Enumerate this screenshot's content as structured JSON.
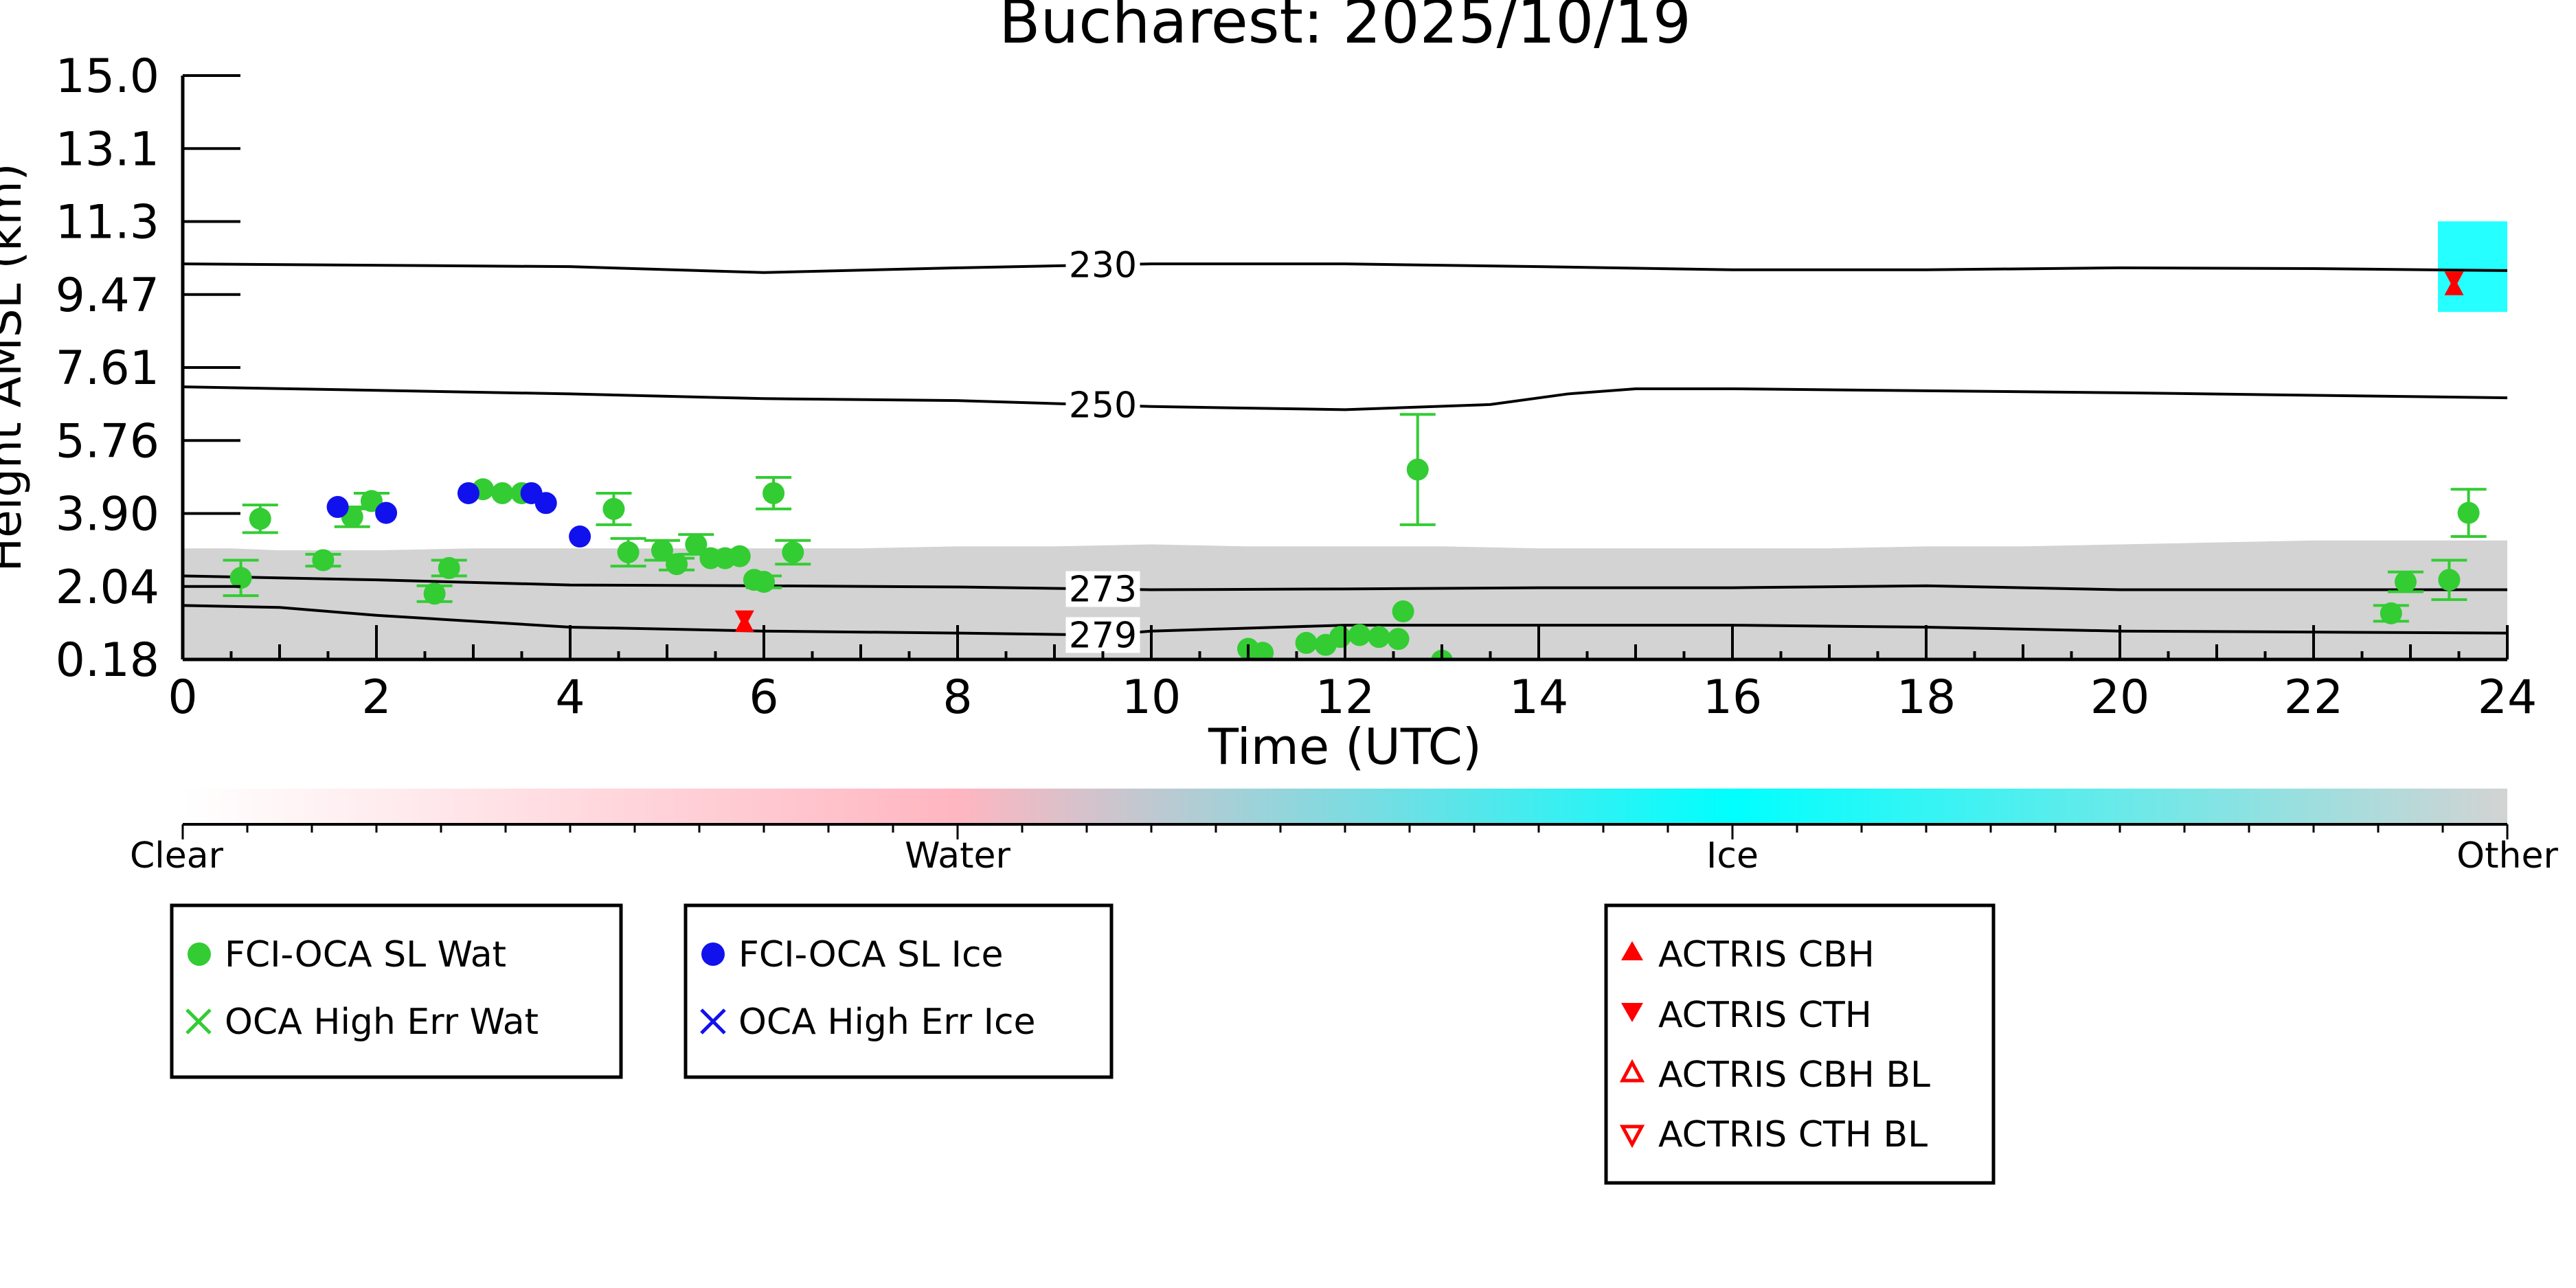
{
  "chart_data": {
    "type": "scatter",
    "title": "Bucharest: 2025/10/19",
    "xlabel": "Time (UTC)",
    "ylabel": "Height AMSL (km)",
    "xlim": [
      0,
      24
    ],
    "ylim": [
      0.18,
      15.0
    ],
    "xticks": [
      "0",
      "2",
      "4",
      "6",
      "8",
      "10",
      "12",
      "14",
      "16",
      "18",
      "20",
      "22",
      "24"
    ],
    "yticks": [
      "0.18",
      "2.04",
      "3.90",
      "5.76",
      "7.61",
      "9.47",
      "11.3",
      "13.1",
      "15.0"
    ],
    "grid": false,
    "isotherms": [
      {
        "label": "230",
        "points": [
          [
            0,
            10.22
          ],
          [
            4,
            10.15
          ],
          [
            6,
            10.0
          ],
          [
            8,
            10.12
          ],
          [
            10,
            10.22
          ],
          [
            12,
            10.22
          ],
          [
            14,
            10.15
          ],
          [
            16,
            10.07
          ],
          [
            18,
            10.07
          ],
          [
            20,
            10.12
          ],
          [
            22,
            10.1
          ],
          [
            24,
            10.05
          ]
        ]
      },
      {
        "label": "250",
        "points": [
          [
            0,
            7.1
          ],
          [
            4,
            6.92
          ],
          [
            6,
            6.8
          ],
          [
            8,
            6.75
          ],
          [
            10,
            6.6
          ],
          [
            12,
            6.52
          ],
          [
            13.5,
            6.65
          ],
          [
            14.3,
            6.92
          ],
          [
            15,
            7.05
          ],
          [
            16,
            7.05
          ],
          [
            18,
            7.0
          ],
          [
            20,
            6.95
          ],
          [
            24,
            6.82
          ]
        ]
      },
      {
        "label": "273",
        "points": [
          [
            0,
            2.3
          ],
          [
            2,
            2.2
          ],
          [
            4,
            2.07
          ],
          [
            6,
            2.05
          ],
          [
            8,
            2.02
          ],
          [
            10,
            1.95
          ],
          [
            12,
            1.97
          ],
          [
            14,
            2.0
          ],
          [
            16,
            2.0
          ],
          [
            18,
            2.05
          ],
          [
            20,
            1.95
          ],
          [
            22,
            1.95
          ],
          [
            24,
            1.95
          ]
        ]
      },
      {
        "label": "279",
        "points": [
          [
            0,
            1.55
          ],
          [
            1,
            1.5
          ],
          [
            2,
            1.3
          ],
          [
            4,
            1.0
          ],
          [
            6,
            0.9
          ],
          [
            8,
            0.85
          ],
          [
            9.5,
            0.8
          ],
          [
            10,
            0.9
          ],
          [
            12,
            1.05
          ],
          [
            14,
            1.05
          ],
          [
            16,
            1.05
          ],
          [
            18,
            1.0
          ],
          [
            20,
            0.9
          ],
          [
            24,
            0.85
          ]
        ]
      }
    ],
    "series": [
      {
        "name": "FCI-OCA SL Wat",
        "color": "#33cc33",
        "marker": "circle",
        "points": [
          [
            0.6,
            2.25,
            0.45
          ],
          [
            0.8,
            3.75,
            0.35
          ],
          [
            1.45,
            2.7,
            0.15
          ],
          [
            1.75,
            3.8,
            0.25
          ],
          [
            1.95,
            4.2,
            0.2
          ],
          [
            2.6,
            1.85,
            0.2
          ],
          [
            2.75,
            2.5,
            0.2
          ],
          [
            3.1,
            4.5,
            0
          ],
          [
            3.3,
            4.4,
            0
          ],
          [
            3.5,
            4.4,
            0
          ],
          [
            4.45,
            4.0,
            0.4
          ],
          [
            4.6,
            2.9,
            0.35
          ],
          [
            4.95,
            2.95,
            0.25
          ],
          [
            5.1,
            2.6,
            0.15
          ],
          [
            5.3,
            3.1,
            0.25
          ],
          [
            5.45,
            2.75,
            0
          ],
          [
            5.6,
            2.75,
            0
          ],
          [
            5.75,
            2.8,
            0
          ],
          [
            5.9,
            2.2,
            0
          ],
          [
            6.0,
            2.15,
            0.15
          ],
          [
            6.1,
            4.4,
            0.4
          ],
          [
            6.3,
            2.9,
            0.3
          ],
          [
            11.0,
            0.45,
            0
          ],
          [
            11.15,
            0.35,
            0
          ],
          [
            11.6,
            0.6,
            0
          ],
          [
            11.8,
            0.55,
            0
          ],
          [
            11.95,
            0.75,
            0
          ],
          [
            12.15,
            0.8,
            0
          ],
          [
            12.35,
            0.75,
            0
          ],
          [
            12.55,
            0.7,
            0
          ],
          [
            12.6,
            1.4,
            0
          ],
          [
            12.75,
            5.0,
            1.4
          ],
          [
            13.0,
            0.15,
            0
          ],
          [
            22.8,
            1.35,
            0.2
          ],
          [
            22.95,
            2.15,
            0.25
          ],
          [
            23.4,
            2.2,
            0.5
          ],
          [
            23.6,
            3.9,
            0.6
          ]
        ]
      },
      {
        "name": "OCA High Err Wat",
        "color": "#33cc33",
        "marker": "x",
        "points": []
      },
      {
        "name": "FCI-OCA SL Ice",
        "color": "#1111ee",
        "marker": "circle",
        "points": [
          [
            1.6,
            4.05
          ],
          [
            2.1,
            3.9
          ],
          [
            2.95,
            4.4
          ],
          [
            3.6,
            4.4
          ],
          [
            3.75,
            4.15
          ],
          [
            4.1,
            3.3
          ]
        ]
      },
      {
        "name": "OCA High Err Ice",
        "color": "#1111ee",
        "marker": "x",
        "points": []
      },
      {
        "name": "ACTRIS CBH",
        "color": "#ff0000",
        "marker": "triangle-up",
        "points": [
          [
            5.8,
            1.05
          ],
          [
            23.45,
            9.6
          ]
        ]
      },
      {
        "name": "ACTRIS CTH",
        "color": "#ff0000",
        "marker": "triangle-down",
        "points": [
          [
            5.8,
            1.25
          ],
          [
            23.45,
            9.85
          ]
        ]
      },
      {
        "name": "ACTRIS CBH BL",
        "color": "#ff0000",
        "marker": "triangle-up-open",
        "points": []
      },
      {
        "name": "ACTRIS CTH BL",
        "color": "#ff0000",
        "marker": "triangle-down-open",
        "points": []
      }
    ],
    "cloud_mask": {
      "gray_top": [
        [
          0,
          3.0
        ],
        [
          0.5,
          3.0
        ],
        [
          1,
          2.95
        ],
        [
          2,
          2.95
        ],
        [
          3,
          3.0
        ],
        [
          4,
          3.0
        ],
        [
          5,
          3.0
        ],
        [
          6,
          3.0
        ],
        [
          7,
          3.0
        ],
        [
          8,
          3.05
        ],
        [
          9,
          3.05
        ],
        [
          10,
          3.1
        ],
        [
          11,
          3.05
        ],
        [
          12,
          3.05
        ],
        [
          13,
          3.05
        ],
        [
          14,
          3.0
        ],
        [
          15,
          3.0
        ],
        [
          16,
          3.0
        ],
        [
          17,
          3.0
        ],
        [
          18,
          3.05
        ],
        [
          19,
          3.05
        ],
        [
          20,
          3.1
        ],
        [
          21,
          3.15
        ],
        [
          22,
          3.2
        ],
        [
          23,
          3.2
        ],
        [
          24,
          3.2
        ]
      ],
      "ice_patch": [
        23.0,
        24.0,
        9.0,
        11.3
      ]
    },
    "colorbar": {
      "labels": [
        "Clear",
        "Water",
        "Ice",
        "Other"
      ],
      "colors": [
        "#ffffff",
        "#ffb6c1",
        "#00ffff",
        "#d3d3d3"
      ]
    },
    "legend_groups": [
      [
        "FCI-OCA SL Wat",
        "OCA High Err Wat"
      ],
      [
        "FCI-OCA SL Ice",
        "OCA High Err Ice"
      ],
      [
        "ACTRIS CBH",
        "ACTRIS CTH",
        "ACTRIS CBH BL",
        "ACTRIS CTH BL"
      ]
    ]
  }
}
